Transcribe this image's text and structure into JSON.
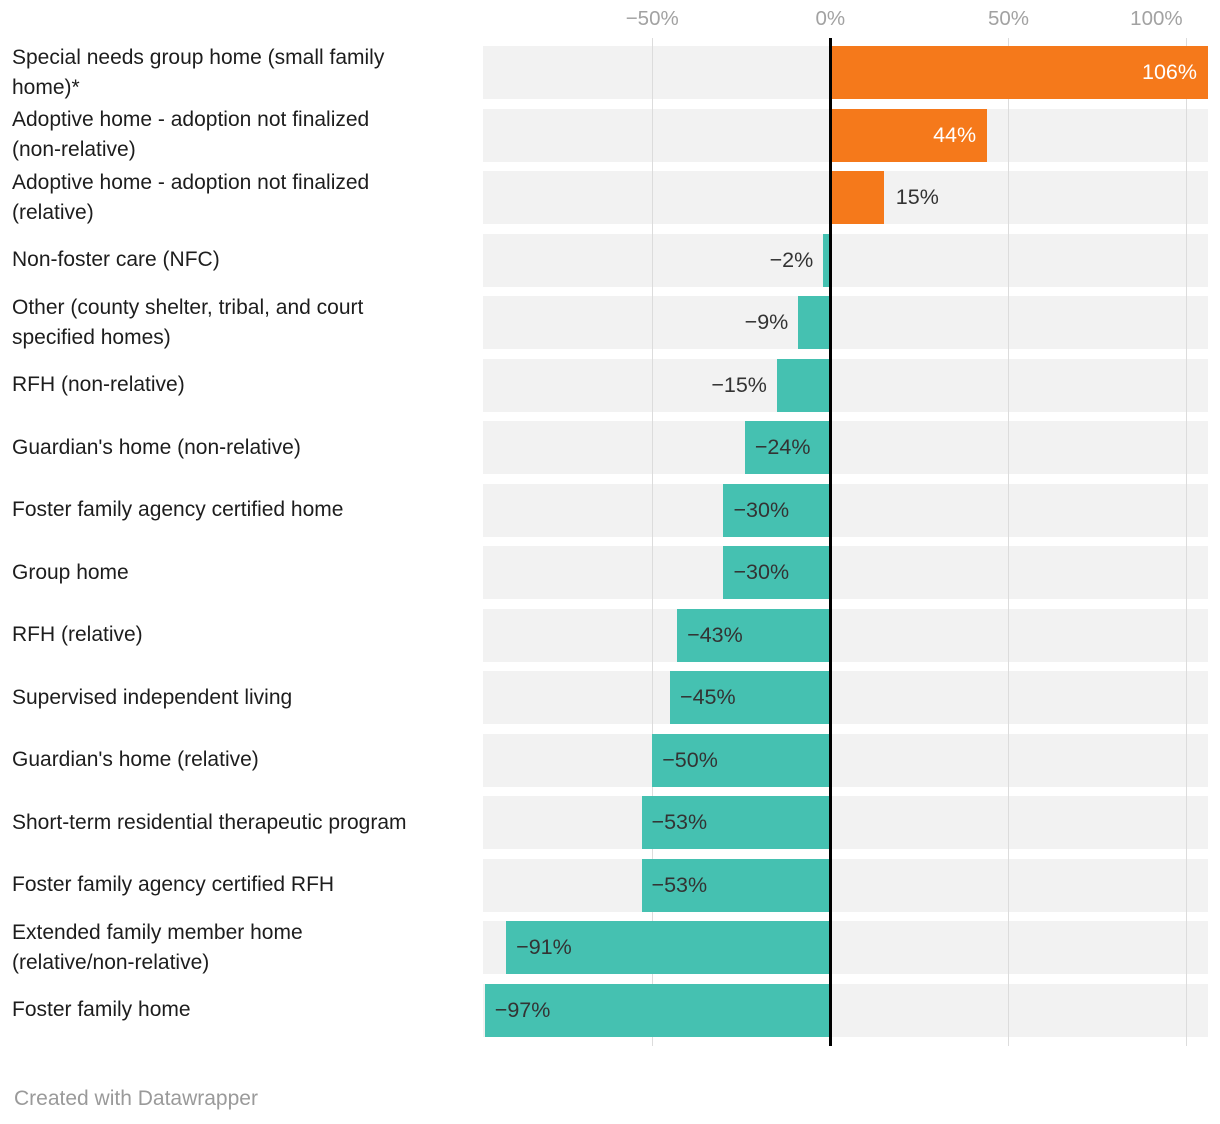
{
  "chart_data": {
    "type": "bar",
    "orientation": "horizontal-diverging",
    "unit": "%",
    "categories": [
      "Special needs group home (small family\nhome)*",
      "Adoptive home - adoption not finalized\n(non-relative)",
      "Adoptive home - adoption not finalized\n(relative)",
      "Non-foster care (NFC)",
      "Other (county shelter, tribal, and court\nspecified homes)",
      "RFH (non-relative)",
      "Guardian's home (non-relative)",
      "Foster family agency certified home",
      "Group home",
      "RFH (relative)",
      "Supervised independent living",
      "Guardian's home (relative)",
      "Short-term residential therapeutic program",
      "Foster family agency certified RFH",
      "Extended family member home\n(relative/non-relative)",
      "Foster family home"
    ],
    "values": [
      106,
      44,
      15,
      -2,
      -9,
      -15,
      -24,
      -30,
      -30,
      -43,
      -45,
      -50,
      -53,
      -53,
      -91,
      -97
    ],
    "value_labels": [
      "106%",
      "44%",
      "15%",
      "−2%",
      "−9%",
      "−15%",
      "−24%",
      "−30%",
      "−30%",
      "−43%",
      "−45%",
      "−50%",
      "−53%",
      "−53%",
      "−91%",
      "−97%"
    ],
    "x_axis": {
      "xmin": -97.5,
      "xmax": 106,
      "ticks": [
        {
          "value": -50,
          "label": "−50%"
        },
        {
          "value": 0,
          "label": "0%"
        },
        {
          "value": 50,
          "label": "50%"
        },
        {
          "value": 100,
          "label": "100%"
        }
      ]
    },
    "grid": true,
    "legend": "none",
    "colors": {
      "positive_bar": "#f5791b",
      "negative_bar": "#45c1b1",
      "row_background": "#f2f2f2",
      "gridline": "#dcdcdc",
      "zero_line": "#000000",
      "value_label_light": "#ffffff",
      "value_label_dark": "#333333",
      "axis_text": "#a2a2a2",
      "category_text": "#1d1d1d"
    }
  },
  "footer": {
    "credit": "Created with Datawrapper"
  }
}
